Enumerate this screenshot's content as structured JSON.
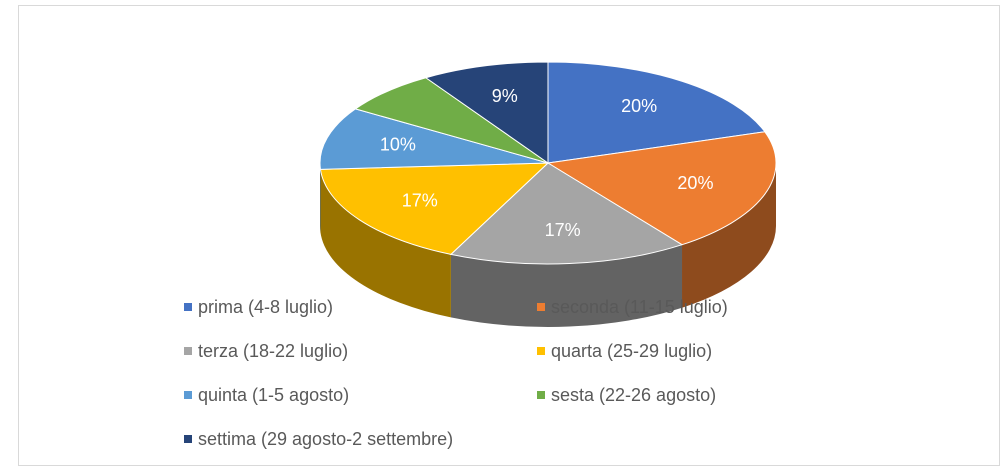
{
  "chart_data": {
    "type": "pie",
    "categories": [
      "prima (4-8 luglio)",
      "seconda (11-15 luglio)",
      "terza (18-22 luglio)",
      "quarta (25-29 luglio)",
      "quinta (1-5 agosto)",
      "sesta (22-26 agosto)",
      "settima (29 agosto-2 settembre)"
    ],
    "values": [
      20,
      20,
      17,
      17,
      10,
      7,
      9
    ],
    "value_labels": [
      "20%",
      "20%",
      "17%",
      "17%",
      "10%",
      null,
      "9%"
    ],
    "colors": [
      "#4472c4",
      "#ed7d31",
      "#a5a5a5",
      "#ffc000",
      "#5b9bd5",
      "#70ad47",
      "#264478"
    ],
    "legend": "bottom"
  }
}
